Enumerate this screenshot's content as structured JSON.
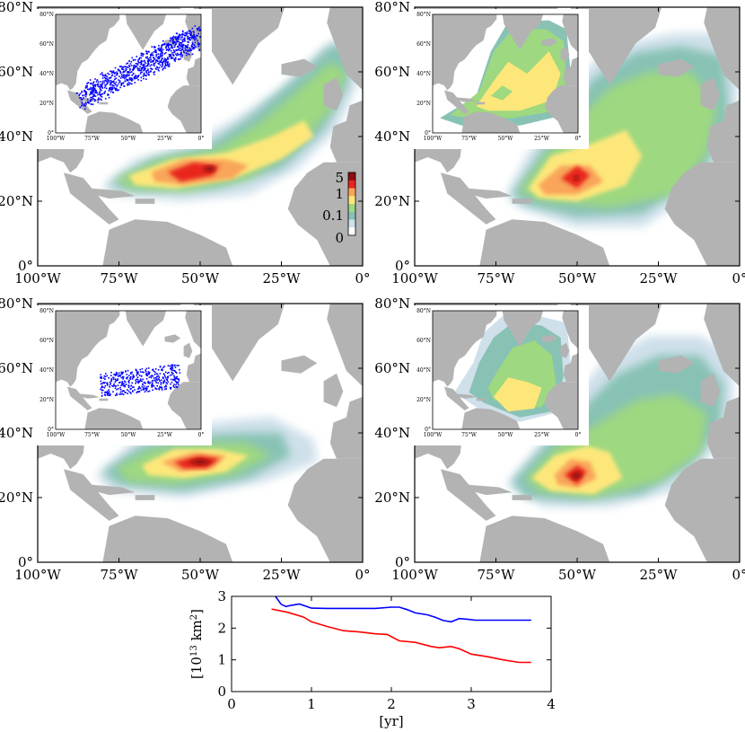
{
  "chart_data": [
    {
      "type": "heatmap",
      "panel": "top-left",
      "description_text": [],
      "x_ticks": [
        "100°W",
        "75°W",
        "50°W",
        "25°W",
        "0°"
      ],
      "y_ticks": [
        "0°",
        "20°N",
        "40°N",
        "60°N",
        "80°N"
      ],
      "xlim": [
        -100,
        0
      ],
      "ylim": [
        0,
        80
      ],
      "colorbar": {
        "labels": [
          "0",
          "0.1",
          "1",
          "5"
        ],
        "values": [
          0,
          0.1,
          1,
          5
        ]
      },
      "peak": {
        "lon": -48,
        "lat": 30,
        "value": 5
      },
      "inset": {
        "type": "scatter",
        "x_ticks": [
          "100°W",
          "75°W",
          "50°W",
          "25°W",
          "0°"
        ],
        "y_ticks": [
          "0°",
          "20°N",
          "40°N",
          "60°N",
          "80°N"
        ],
        "note": "blue particle positions"
      }
    },
    {
      "type": "heatmap",
      "panel": "top-right",
      "x_ticks": [
        "100°W",
        "75°W",
        "50°W",
        "25°W",
        "0°"
      ],
      "y_ticks": [
        "0°",
        "20°N",
        "40°N",
        "60°N",
        "80°N"
      ],
      "xlim": [
        -100,
        0
      ],
      "ylim": [
        0,
        80
      ],
      "peak": {
        "lon": -50,
        "lat": 27,
        "value": 5
      },
      "inset": {
        "type": "heatmap",
        "x_ticks": [
          "100°W",
          "75°W",
          "50°W",
          "25°W",
          "0°"
        ],
        "y_ticks": [
          "0°",
          "20°N",
          "40°N",
          "60°N",
          "80°N"
        ]
      }
    },
    {
      "type": "heatmap",
      "panel": "middle-left",
      "x_ticks": [
        "100°W",
        "75°W",
        "50°W",
        "25°W",
        "0°"
      ],
      "y_ticks": [
        "0°",
        "20°N",
        "40°N",
        "60°N",
        "80°N"
      ],
      "xlim": [
        -100,
        0
      ],
      "ylim": [
        0,
        80
      ],
      "peak": {
        "lon": -50,
        "lat": 31,
        "value": 5
      },
      "inset": {
        "type": "scatter",
        "x_ticks": [
          "100°W",
          "75°W",
          "50°W",
          "25°W",
          "0°"
        ],
        "y_ticks": [
          "0°",
          "20°N",
          "40°N",
          "60°N",
          "80°N"
        ],
        "note": "blue particle positions"
      }
    },
    {
      "type": "heatmap",
      "panel": "middle-right",
      "x_ticks": [
        "100°W",
        "75°W",
        "50°W",
        "25°W",
        "0°"
      ],
      "y_ticks": [
        "0°",
        "20°N",
        "40°N",
        "60°N",
        "80°N"
      ],
      "xlim": [
        -100,
        0
      ],
      "ylim": [
        0,
        80
      ],
      "peak": {
        "lon": -51,
        "lat": 28,
        "value": 5
      },
      "inset": {
        "type": "heatmap",
        "x_ticks": [
          "100°W",
          "75°W",
          "50°W",
          "25°W",
          "0°"
        ],
        "y_ticks": [
          "0°",
          "20°N",
          "40°N",
          "60°N",
          "80°N"
        ]
      }
    },
    {
      "type": "line",
      "panel": "bottom",
      "xlabel": "[yr]",
      "ylabel_base": "[10",
      "ylabel_exp1": "13",
      "ylabel_mid": " km",
      "ylabel_exp2": "2",
      "ylabel_end": "]",
      "xlim": [
        0,
        4
      ],
      "ylim": [
        0,
        3
      ],
      "x_ticks": [
        "0",
        "1",
        "2",
        "3",
        "4"
      ],
      "y_ticks": [
        "0",
        "1",
        "2",
        "3"
      ],
      "series": [
        {
          "name": "blue",
          "color": "#0000ff",
          "x": [
            0.55,
            0.62,
            0.68,
            0.75,
            0.85,
            1.0,
            1.2,
            1.5,
            1.8,
            2.0,
            2.1,
            2.2,
            2.3,
            2.45,
            2.55,
            2.65,
            2.75,
            2.85,
            2.95,
            3.05,
            3.2,
            3.4,
            3.6,
            3.75
          ],
          "y": [
            3.0,
            2.75,
            2.68,
            2.72,
            2.76,
            2.63,
            2.62,
            2.62,
            2.62,
            2.66,
            2.66,
            2.58,
            2.48,
            2.42,
            2.34,
            2.24,
            2.2,
            2.3,
            2.28,
            2.25,
            2.25,
            2.25,
            2.25,
            2.25
          ]
        },
        {
          "name": "red",
          "color": "#ff0000",
          "x": [
            0.5,
            0.7,
            0.9,
            1.0,
            1.2,
            1.4,
            1.6,
            1.8,
            1.95,
            2.1,
            2.3,
            2.5,
            2.6,
            2.75,
            2.85,
            3.0,
            3.2,
            3.4,
            3.6,
            3.75
          ],
          "y": [
            2.6,
            2.5,
            2.35,
            2.2,
            2.05,
            1.92,
            1.88,
            1.82,
            1.8,
            1.6,
            1.55,
            1.42,
            1.38,
            1.42,
            1.35,
            1.18,
            1.1,
            1.0,
            0.92,
            0.92
          ]
        }
      ]
    }
  ]
}
